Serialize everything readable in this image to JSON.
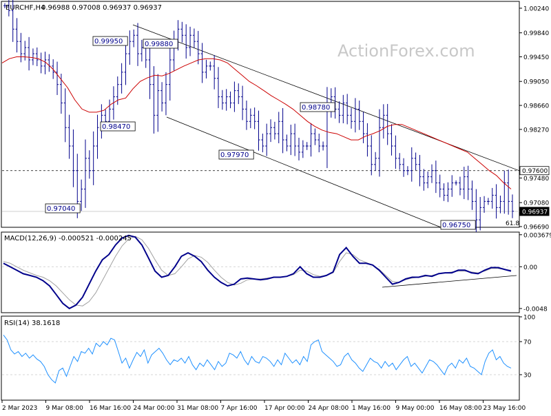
{
  "header": {
    "symbol": "EURCHF,H4",
    "ohlc": "0.96988 0.97008 0.96937 0.96937",
    "watermark": "ActionForex.com"
  },
  "chart_data": [
    {
      "name": "price",
      "type": "ohlc",
      "ylim": [
        0.9669,
        1.0034
      ],
      "y_ticks": [
        "1.00240",
        "0.99840",
        "0.99450",
        "0.99050",
        "0.98660",
        "0.98270",
        "0.97480",
        "0.97080",
        "0.96690"
      ],
      "y_tick_values": [
        1.0024,
        0.9984,
        0.9945,
        0.9905,
        0.9866,
        0.9827,
        0.9748,
        0.9708,
        0.9669
      ],
      "current_price": {
        "label": "0.96937",
        "value": 0.96937
      },
      "resistance": {
        "label": "0.97600",
        "value": 0.976
      },
      "fib_label": "61.8",
      "closes": [
        1.0028,
        1.002,
        0.999,
        0.997,
        0.995,
        0.996,
        0.994,
        0.995,
        0.994,
        0.993,
        0.994,
        0.993,
        0.992,
        0.99,
        0.987,
        0.983,
        0.98,
        0.976,
        0.971,
        0.973,
        0.978,
        0.976,
        0.98,
        0.983,
        0.985,
        0.984,
        0.986,
        0.988,
        0.99,
        0.992,
        0.995,
        0.997,
        0.998,
        0.995,
        0.996,
        0.994,
        0.99,
        0.985,
        0.989,
        0.987,
        0.99,
        0.994,
        0.997,
        0.999,
        0.998,
        0.996,
        0.998,
        0.997,
        0.995,
        0.992,
        0.993,
        0.993,
        0.991,
        0.988,
        0.987,
        0.988,
        0.987,
        0.989,
        0.988,
        0.986,
        0.984,
        0.985,
        0.984,
        0.981,
        0.98,
        0.982,
        0.983,
        0.982,
        0.984,
        0.981,
        0.98,
        0.982,
        0.98,
        0.979,
        0.98,
        0.98,
        0.982,
        0.981,
        0.98,
        0.98,
        0.986,
        0.988,
        0.986,
        0.985,
        0.987,
        0.985,
        0.984,
        0.986,
        0.984,
        0.982,
        0.98,
        0.977,
        0.978,
        0.983,
        0.985,
        0.982,
        0.98,
        0.978,
        0.977,
        0.976,
        0.976,
        0.978,
        0.977,
        0.975,
        0.974,
        0.975,
        0.976,
        0.974,
        0.973,
        0.972,
        0.973,
        0.974,
        0.974,
        0.973,
        0.975,
        0.973,
        0.971,
        0.968,
        0.97,
        0.971,
        0.971,
        0.972,
        0.97,
        0.971,
        0.974,
        0.971,
        0.9694
      ],
      "moving_average": [
        0.9935,
        0.9942,
        0.9945,
        0.9945,
        0.9944,
        0.9942,
        0.9936,
        0.9925,
        0.991,
        0.9895,
        0.9875,
        0.986,
        0.9855,
        0.9855,
        0.9858,
        0.9868,
        0.9875,
        0.9878,
        0.9893,
        0.9905,
        0.9911,
        0.9915,
        0.9914,
        0.9918,
        0.9924,
        0.993,
        0.9935,
        0.994,
        0.9942,
        0.9942,
        0.994,
        0.9935,
        0.9925,
        0.9915,
        0.9905,
        0.9898,
        0.989,
        0.9882,
        0.9875,
        0.9868,
        0.986,
        0.985,
        0.984,
        0.9832,
        0.9826,
        0.9822,
        0.982,
        0.9815,
        0.981,
        0.981,
        0.9816,
        0.982,
        0.9825,
        0.9832,
        0.9835,
        0.9835,
        0.983,
        0.9825,
        0.982,
        0.9815,
        0.981,
        0.9805,
        0.98,
        0.9795,
        0.979,
        0.978,
        0.977,
        0.976,
        0.9752,
        0.974,
        0.973
      ],
      "annotations": [
        {
          "label": "0.99950",
          "value": 0.9995
        },
        {
          "label": "0.99880",
          "value": 0.9988
        },
        {
          "label": "0.98470",
          "value": 0.9847
        },
        {
          "label": "0.97040",
          "value": 0.9704
        },
        {
          "label": "0.97970",
          "value": 0.9797
        },
        {
          "label": "0.98780",
          "value": 0.9878
        },
        {
          "label": "0.96750",
          "value": 0.9675
        }
      ]
    },
    {
      "name": "macd",
      "type": "line",
      "title": "MACD(12,26,9) -0.000521 -0.000245",
      "ylim": [
        -0.0052,
        0.0039
      ],
      "y_ticks": [
        "0.003679",
        "0.00",
        "-0.0048"
      ],
      "y_tick_values": [
        0.003679,
        0,
        -0.0048
      ],
      "current_label": "0.00",
      "macd_line": [
        0.0004,
        0.0,
        -0.0004,
        -0.0008,
        -0.001,
        -0.0012,
        -0.0016,
        -0.0022,
        -0.0032,
        -0.0042,
        -0.0048,
        -0.0044,
        -0.0035,
        -0.002,
        -0.0005,
        0.0008,
        0.0014,
        0.0025,
        0.0033,
        0.0036,
        0.0034,
        0.0025,
        0.001,
        -0.0005,
        -0.0012,
        -0.001,
        0.0,
        0.0012,
        0.0016,
        0.0012,
        0.0006,
        -0.0004,
        -0.0012,
        -0.0018,
        -0.0022,
        -0.002,
        -0.0014,
        -0.0013,
        -0.0014,
        -0.0015,
        -0.0014,
        -0.0012,
        -0.0012,
        -0.0011,
        -0.0008,
        0.0,
        -0.0008,
        -0.0012,
        -0.0012,
        -0.001,
        -0.0006,
        0.0014,
        0.0022,
        0.0012,
        0.0004,
        0.0004,
        0.0002,
        -0.0004,
        -0.0012,
        -0.002,
        -0.0018,
        -0.0014,
        -0.0012,
        -0.0012,
        -0.001,
        -0.0011,
        -0.0008,
        -0.0007,
        -0.0007,
        -0.0004,
        -0.0004,
        -0.0007,
        -0.0008,
        -0.0004,
        -0.0001,
        -0.0001,
        -0.0003,
        -0.0005
      ],
      "signal_line": [
        0.0006,
        0.0004,
        0.0,
        -0.0004,
        -0.0007,
        -0.001,
        -0.0012,
        -0.0016,
        -0.0022,
        -0.003,
        -0.0038,
        -0.0044,
        -0.0045,
        -0.004,
        -0.003,
        -0.0016,
        -0.0002,
        0.0012,
        0.0024,
        0.0032,
        0.0035,
        0.0031,
        0.0021,
        0.0008,
        -0.0004,
        -0.001,
        -0.0008,
        0.0,
        0.0009,
        0.0013,
        0.0011,
        0.0005,
        -0.0004,
        -0.0012,
        -0.0018,
        -0.0021,
        -0.0019,
        -0.0015,
        -0.0014,
        -0.0014,
        -0.0013,
        -0.0012,
        -0.0012,
        -0.0011,
        -0.0009,
        -0.0004,
        -0.0005,
        -0.0009,
        -0.0011,
        -0.001,
        -0.0007,
        0.0006,
        0.0016,
        0.0014,
        0.0008,
        0.0005,
        0.0002,
        -0.0003,
        -0.001,
        -0.0017,
        -0.0018,
        -0.0015,
        -0.0013,
        -0.0012,
        -0.0011,
        -0.001,
        -0.0008,
        -0.0007,
        -0.0006,
        -0.0005,
        -0.0005,
        -0.0006,
        -0.0007,
        -0.0005,
        -0.0002,
        -0.0002,
        -0.0003,
        -0.0004
      ]
    },
    {
      "name": "rsi",
      "type": "line",
      "title": "RSI(14) 38.1618",
      "ylim": [
        0,
        100
      ],
      "y_ticks": [
        "100",
        "70",
        "30"
      ],
      "y_tick_values": [
        100,
        70,
        30
      ],
      "levels": [
        70,
        30
      ],
      "values": [
        78,
        72,
        60,
        55,
        58,
        52,
        56,
        50,
        54,
        49,
        46,
        40,
        30,
        24,
        20,
        35,
        38,
        28,
        40,
        52,
        46,
        58,
        56,
        62,
        55,
        68,
        64,
        70,
        66,
        74,
        72,
        58,
        44,
        50,
        38,
        48,
        57,
        52,
        60,
        44,
        54,
        58,
        62,
        56,
        48,
        42,
        48,
        46,
        50,
        44,
        52,
        42,
        36,
        44,
        40,
        48,
        42,
        36,
        46,
        40,
        44,
        56,
        54,
        50,
        58,
        48,
        42,
        52,
        46,
        44,
        52,
        50,
        46,
        40,
        48,
        42,
        56,
        50,
        44,
        48,
        42,
        52,
        46,
        66,
        70,
        72,
        58,
        54,
        50,
        46,
        40,
        42,
        52,
        56,
        48,
        44,
        38,
        34,
        42,
        50,
        46,
        44,
        38,
        46,
        40,
        44,
        36,
        42,
        48,
        52,
        40,
        44,
        38,
        32,
        40,
        48,
        46,
        42,
        36,
        30,
        40,
        44,
        38,
        48,
        44,
        50,
        40,
        38,
        34,
        30,
        46,
        56,
        60,
        48,
        52,
        44,
        40,
        38
      ]
    }
  ],
  "x_axis": {
    "labels": [
      "2 Mar 2023",
      "9 Mar 08:00",
      "16 Mar 16:00",
      "24 Mar 00:00",
      "31 Mar 08:00",
      "7 Apr 16:00",
      "17 Apr 00:00",
      "24 Apr 08:00",
      "1 May 16:00",
      "9 May 00:00",
      "16 May 08:00",
      "23 May 16:00"
    ]
  },
  "colors": {
    "price_bars": "#00008b",
    "moving_average": "#cc0000",
    "macd_line": "#00008b",
    "signal_line": "#a0a0a0",
    "rsi_line": "#1e90ff",
    "grid_dash": "#c8c8c8",
    "watermark": "#c8c8c8",
    "channel": "#000000"
  }
}
